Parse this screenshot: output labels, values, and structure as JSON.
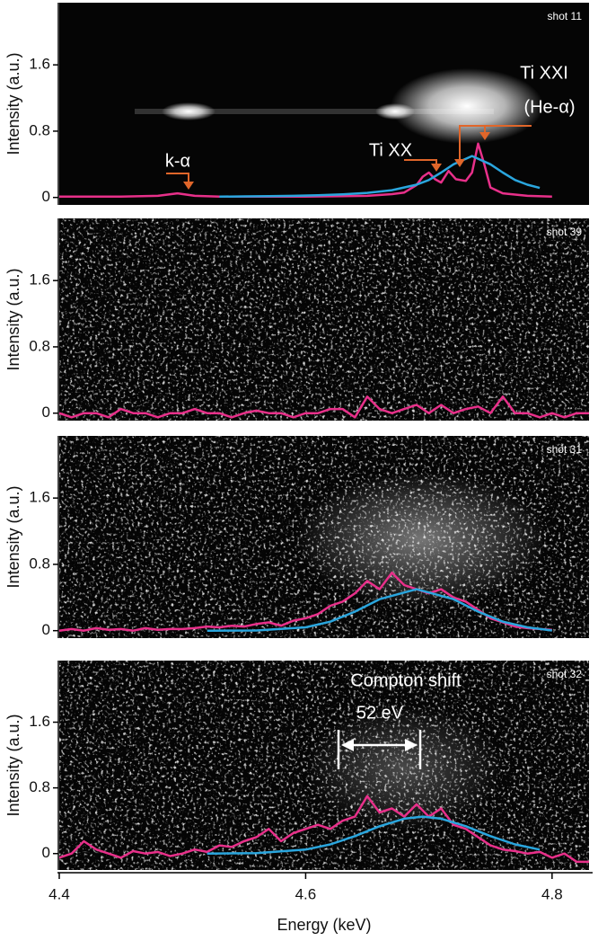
{
  "chart_data": [
    {
      "type": "line",
      "title": "shot 11",
      "ylabel": "Intensity (a.u.)",
      "xlim": [
        4.4,
        4.83
      ],
      "ylim": [
        -0.09,
        2.35
      ],
      "yticks": [
        0,
        0.8,
        1.6
      ],
      "annotations": [
        "Ti XXI",
        "(He-α)",
        "Ti XX",
        "k-α"
      ],
      "series": [
        {
          "color": "#e8308a",
          "x": [
            4.4,
            4.45,
            4.48,
            4.496,
            4.51,
            4.53,
            4.6,
            4.65,
            4.67,
            4.68,
            4.69,
            4.695,
            4.7,
            4.705,
            4.71,
            4.716,
            4.722,
            4.73,
            4.735,
            4.74,
            4.745,
            4.75,
            4.76,
            4.78,
            4.8
          ],
          "values": [
            0.01,
            0.01,
            0.02,
            0.05,
            0.02,
            0.01,
            0.01,
            0.02,
            0.04,
            0.06,
            0.15,
            0.25,
            0.3,
            0.22,
            0.18,
            0.32,
            0.22,
            0.2,
            0.3,
            0.65,
            0.4,
            0.12,
            0.05,
            0.02,
            0.01
          ]
        },
        {
          "color": "#2aa6de",
          "x": [
            4.53,
            4.55,
            4.57,
            4.59,
            4.61,
            4.63,
            4.65,
            4.67,
            4.69,
            4.7,
            4.71,
            4.72,
            4.735,
            4.75,
            4.76,
            4.77,
            4.78,
            4.79
          ],
          "values": [
            0.01,
            0.013,
            0.016,
            0.02,
            0.027,
            0.038,
            0.055,
            0.088,
            0.154,
            0.21,
            0.3,
            0.4,
            0.5,
            0.4,
            0.3,
            0.21,
            0.154,
            0.115
          ]
        }
      ]
    },
    {
      "type": "line",
      "title": "shot 39",
      "ylabel": "Intensity (a.u.)",
      "xlim": [
        4.4,
        4.83
      ],
      "ylim": [
        -0.09,
        2.35
      ],
      "yticks": [
        0,
        0.8,
        1.6
      ],
      "series": [
        {
          "color": "#e8308a",
          "x": [
            4.4,
            4.41,
            4.42,
            4.43,
            4.44,
            4.45,
            4.46,
            4.47,
            4.48,
            4.49,
            4.5,
            4.51,
            4.52,
            4.53,
            4.54,
            4.55,
            4.56,
            4.57,
            4.58,
            4.59,
            4.6,
            4.61,
            4.62,
            4.63,
            4.64,
            4.65,
            4.66,
            4.67,
            4.68,
            4.69,
            4.7,
            4.71,
            4.72,
            4.73,
            4.74,
            4.75,
            4.76,
            4.77,
            4.78,
            4.79,
            4.8,
            4.81,
            4.82,
            4.83
          ],
          "values": [
            0,
            -0.05,
            0,
            0,
            -0.05,
            0.05,
            0,
            0,
            -0.05,
            0,
            0,
            0.05,
            0,
            0,
            -0.05,
            0,
            0.03,
            0,
            0,
            -0.05,
            0,
            0,
            0.05,
            0.05,
            -0.05,
            0.2,
            0.05,
            0,
            0.05,
            0.1,
            0,
            0.1,
            0,
            0.05,
            0.08,
            0,
            0.2,
            0,
            0,
            -0.05,
            0,
            -0.05,
            0,
            0
          ]
        }
      ]
    },
    {
      "type": "line",
      "title": "shot 31",
      "ylabel": "Intensity (a.u.)",
      "xlim": [
        4.4,
        4.83
      ],
      "ylim": [
        -0.09,
        2.35
      ],
      "yticks": [
        0,
        0.8,
        1.6
      ],
      "series": [
        {
          "color": "#e8308a",
          "x": [
            4.4,
            4.41,
            4.42,
            4.43,
            4.44,
            4.45,
            4.46,
            4.47,
            4.48,
            4.49,
            4.5,
            4.51,
            4.52,
            4.53,
            4.54,
            4.55,
            4.56,
            4.57,
            4.58,
            4.59,
            4.6,
            4.61,
            4.62,
            4.63,
            4.64,
            4.65,
            4.66,
            4.67,
            4.68,
            4.69,
            4.7,
            4.71,
            4.72,
            4.73,
            4.74,
            4.75,
            4.76,
            4.77,
            4.78,
            4.79,
            4.8
          ],
          "values": [
            0,
            0.02,
            0,
            0.03,
            0.01,
            0.02,
            0,
            0.03,
            0.01,
            0.02,
            0.02,
            0.03,
            0.05,
            0.04,
            0.06,
            0.05,
            0.08,
            0.1,
            0.06,
            0.12,
            0.15,
            0.2,
            0.3,
            0.35,
            0.45,
            0.6,
            0.5,
            0.7,
            0.55,
            0.5,
            0.45,
            0.5,
            0.4,
            0.35,
            0.25,
            0.15,
            0.1,
            0.05,
            0.03,
            0.02,
            0.01
          ]
        },
        {
          "color": "#2aa6de",
          "x": [
            4.52,
            4.56,
            4.6,
            4.62,
            4.64,
            4.66,
            4.69,
            4.72,
            4.74,
            4.76,
            4.78,
            4.8
          ],
          "values": [
            0,
            0.0025,
            0.04,
            0.108,
            0.23,
            0.38,
            0.5,
            0.38,
            0.23,
            0.108,
            0.04,
            0.0025
          ]
        }
      ]
    },
    {
      "type": "line",
      "title": "shot 32",
      "ylabel": "Intensity (a.u.)",
      "xlabel": "Energy (keV)",
      "xlim": [
        4.4,
        4.83
      ],
      "ylim": [
        -0.2,
        2.35
      ],
      "yticks": [
        0,
        0.8,
        1.6
      ],
      "xticks": [
        4.4,
        4.6,
        4.8
      ],
      "annotations": [
        "Compton shift",
        "52 eV"
      ],
      "series": [
        {
          "color": "#e8308a",
          "x": [
            4.4,
            4.41,
            4.42,
            4.43,
            4.44,
            4.45,
            4.46,
            4.47,
            4.48,
            4.49,
            4.5,
            4.51,
            4.52,
            4.53,
            4.54,
            4.55,
            4.56,
            4.57,
            4.58,
            4.59,
            4.6,
            4.61,
            4.62,
            4.63,
            4.64,
            4.65,
            4.66,
            4.67,
            4.68,
            4.69,
            4.7,
            4.71,
            4.72,
            4.73,
            4.74,
            4.75,
            4.76,
            4.77,
            4.78,
            4.79,
            4.8,
            4.81,
            4.82,
            4.83
          ],
          "values": [
            -0.05,
            0,
            0.15,
            0.05,
            0,
            -0.05,
            0.03,
            0,
            0.02,
            -0.03,
            0,
            0.05,
            0.02,
            0.1,
            0.08,
            0.15,
            0.2,
            0.3,
            0.15,
            0.25,
            0.3,
            0.35,
            0.3,
            0.4,
            0.45,
            0.7,
            0.5,
            0.55,
            0.45,
            0.6,
            0.45,
            0.55,
            0.35,
            0.3,
            0.2,
            0.1,
            0.05,
            0.03,
            0.0,
            0.02,
            -0.05,
            0,
            -0.1,
            -0.1
          ]
        },
        {
          "color": "#2aa6de",
          "x": [
            4.52,
            4.56,
            4.6,
            4.62,
            4.64,
            4.66,
            4.68,
            4.695,
            4.71,
            4.73,
            4.75,
            4.77,
            4.79
          ],
          "values": [
            0,
            0.005,
            0.048,
            0.112,
            0.213,
            0.333,
            0.425,
            0.45,
            0.425,
            0.333,
            0.213,
            0.112,
            0.048
          ]
        }
      ]
    }
  ]
}
